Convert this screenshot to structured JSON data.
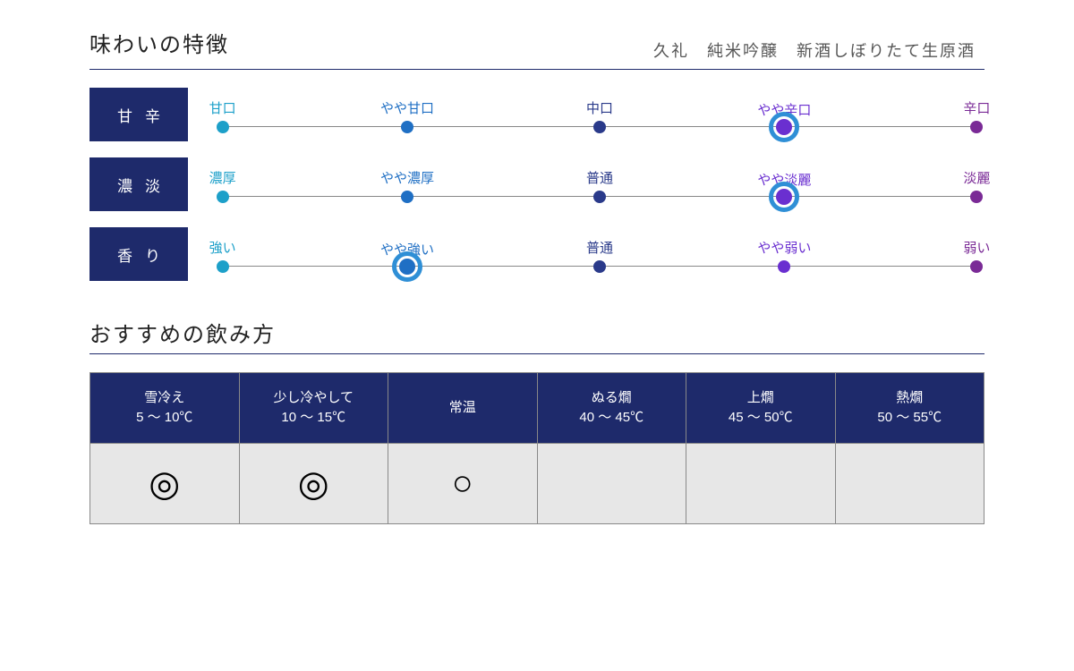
{
  "colors": {
    "navy": "#1e2a6b",
    "cyan": "#1da0c9",
    "blue": "#1f6fc4",
    "midblue": "#2a3a8a",
    "violet": "#6a2fd0",
    "purple": "#7a2a96",
    "ring": "#2f8fd6"
  },
  "taste": {
    "title": "味わいの特徴",
    "subtitle": "久礼　純米吟醸　新酒しぼりたて生原酒",
    "positions_pct": [
      1,
      25,
      50,
      74,
      99
    ],
    "rows": [
      {
        "label": "甘辛",
        "points": [
          {
            "label": "甘口",
            "color_key": "cyan"
          },
          {
            "label": "やや甘口",
            "color_key": "blue"
          },
          {
            "label": "中口",
            "color_key": "midblue"
          },
          {
            "label": "やや辛口",
            "color_key": "violet"
          },
          {
            "label": "辛口",
            "color_key": "purple"
          }
        ],
        "selected_index": 3
      },
      {
        "label": "濃淡",
        "points": [
          {
            "label": "濃厚",
            "color_key": "cyan"
          },
          {
            "label": "やや濃厚",
            "color_key": "blue"
          },
          {
            "label": "普通",
            "color_key": "midblue"
          },
          {
            "label": "やや淡麗",
            "color_key": "violet"
          },
          {
            "label": "淡麗",
            "color_key": "purple"
          }
        ],
        "selected_index": 3
      },
      {
        "label": "香り",
        "points": [
          {
            "label": "強い",
            "color_key": "cyan"
          },
          {
            "label": "やや強い",
            "color_key": "blue"
          },
          {
            "label": "普通",
            "color_key": "midblue"
          },
          {
            "label": "やや弱い",
            "color_key": "violet"
          },
          {
            "label": "弱い",
            "color_key": "purple"
          }
        ],
        "selected_index": 1
      }
    ]
  },
  "serving": {
    "title": "おすすめの飲み方",
    "marks": {
      "best": "◎",
      "good": "○",
      "none": ""
    },
    "columns": [
      {
        "name": "雪冷え",
        "temp": "5 〜 10℃",
        "mark_key": "best"
      },
      {
        "name": "少し冷やして",
        "temp": "10 〜 15℃",
        "mark_key": "best"
      },
      {
        "name": "常温",
        "temp": "",
        "mark_key": "good"
      },
      {
        "name": "ぬる燗",
        "temp": "40 〜 45℃",
        "mark_key": "none"
      },
      {
        "name": "上燗",
        "temp": "45 〜 50℃",
        "mark_key": "none"
      },
      {
        "name": "熱燗",
        "temp": "50 〜 55℃",
        "mark_key": "none"
      }
    ]
  }
}
